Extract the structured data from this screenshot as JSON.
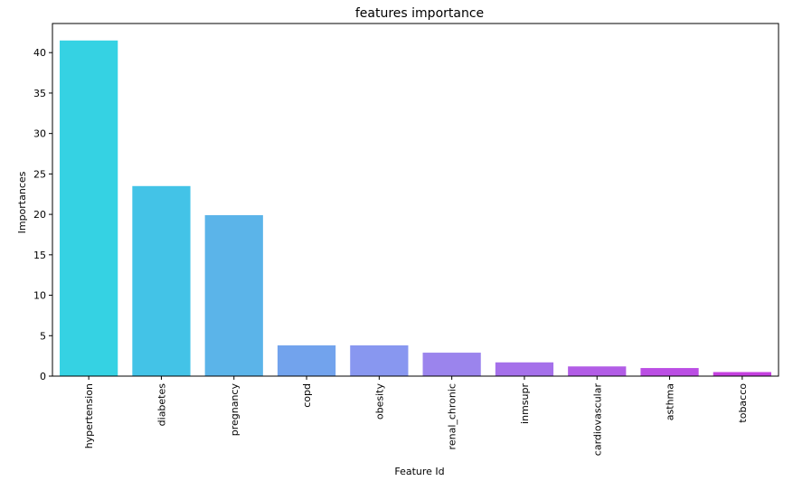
{
  "chart_data": {
    "type": "bar",
    "title": "features importance",
    "xlabel": "Feature Id",
    "ylabel": "Importances",
    "categories": [
      "hypertension",
      "diabetes",
      "pregnancy",
      "copd",
      "obesity",
      "renal_chronic",
      "inmsupr",
      "cardiovascular",
      "asthma",
      "tobacco"
    ],
    "values": [
      41.5,
      23.5,
      19.9,
      3.8,
      3.8,
      2.9,
      1.7,
      1.2,
      1.0,
      0.5
    ],
    "colors": [
      "#35d2e3",
      "#43c3e7",
      "#5bb4e9",
      "#72a3ed",
      "#8897f0",
      "#9b84ed",
      "#a570ea",
      "#b25de6",
      "#bb4ee4",
      "#c540df"
    ],
    "ylim": [
      0,
      43.6
    ],
    "yticks": [
      0,
      5,
      10,
      15,
      20,
      25,
      30,
      35,
      40
    ],
    "grid": false
  }
}
